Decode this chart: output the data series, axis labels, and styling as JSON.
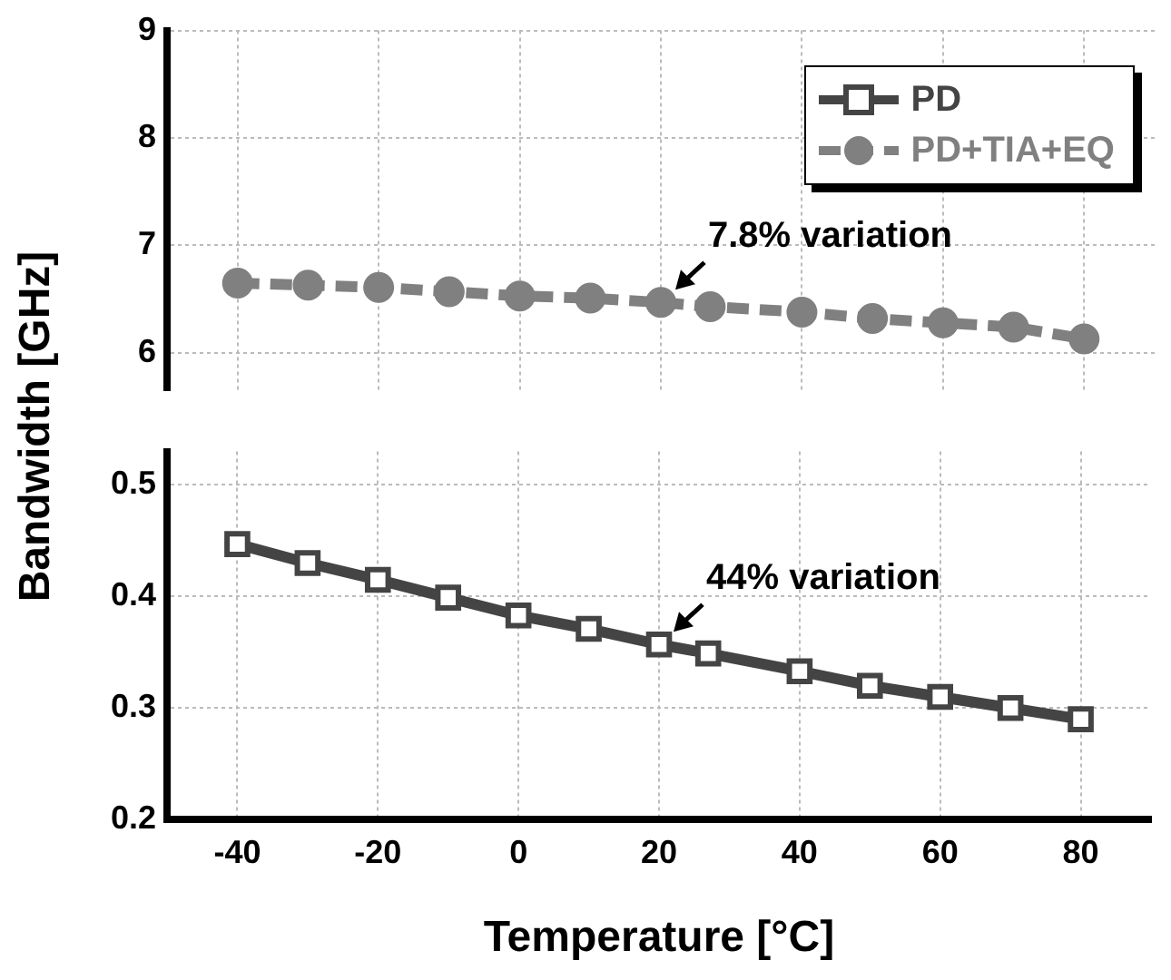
{
  "chart_data": [
    {
      "type": "line",
      "ylabel": "Bandwidth [GHz]",
      "x": [
        -40,
        -30,
        -20,
        -10,
        0,
        10,
        20,
        27,
        40,
        50,
        60,
        70,
        80
      ],
      "xlim": [
        -50,
        90
      ],
      "xticks": [
        -40,
        -20,
        0,
        20,
        40,
        60,
        80
      ],
      "ylim": [
        5.65,
        9
      ],
      "yticks": [
        6,
        7,
        8,
        9
      ],
      "tick_labels": "y",
      "grid": true,
      "legend": "top right",
      "marker": "circle",
      "line_style": "dashed",
      "series": [
        {
          "name": "PD+TIA+EQ",
          "color": "#808080",
          "values": [
            6.65,
            6.63,
            6.61,
            6.57,
            6.53,
            6.51,
            6.47,
            6.43,
            6.38,
            6.32,
            6.28,
            6.24,
            6.13
          ]
        }
      ],
      "annotations": [
        {
          "text": "7.8% variation",
          "x": 20,
          "y": 6.47
        }
      ]
    },
    {
      "type": "line",
      "xlabel": "Temperature [°C]",
      "x": [
        -40,
        -30,
        -20,
        -10,
        0,
        10,
        20,
        27,
        40,
        50,
        60,
        70,
        80
      ],
      "xlim": [
        -50,
        90
      ],
      "xticks": [
        -40,
        -20,
        0,
        20,
        40,
        60,
        80
      ],
      "ylim": [
        0.2,
        0.53
      ],
      "yticks": [
        0.2,
        0.3,
        0.4,
        0.5
      ],
      "grid": true,
      "marker": "square",
      "line_style": "solid",
      "series": [
        {
          "name": "PD",
          "color": "#444444",
          "values": [
            0.447,
            0.43,
            0.415,
            0.399,
            0.383,
            0.371,
            0.357,
            0.349,
            0.333,
            0.32,
            0.31,
            0.3,
            0.29
          ]
        }
      ],
      "annotations": [
        {
          "text": "44% variation",
          "x": 20,
          "y": 0.357
        }
      ]
    }
  ]
}
